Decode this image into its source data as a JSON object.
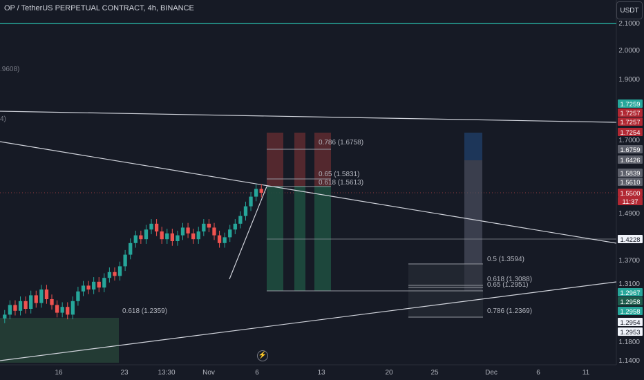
{
  "header": {
    "title": "OP / TetherUS PERPETUAL CONTRACT, 4h, BINANCE",
    "currency_button": "USDT"
  },
  "edge_labels": {
    "top_left": ".9608)",
    "mid_left": "4)"
  },
  "colors": {
    "background": "#161a25",
    "up": "#26a69a",
    "down": "#ef5350",
    "green_zone": "#1e4d3f",
    "red_zone": "#5a2a30",
    "white_line": "#d1d4dc",
    "bottom_zone": "#2a4a3a",
    "blue_zone": "#1e3a5f",
    "grey_zone": "#4a4f5e",
    "teal_line": "#26a69a"
  },
  "icons": {
    "flash": "lightning-icon"
  },
  "flash_glyph": "⚡",
  "chart_data": {
    "type": "candlestick",
    "title": "OP / TetherUS PERPETUAL CONTRACT, 4h, BINANCE",
    "y_axis": {
      "ticks": [
        "2.1000",
        "2.0000",
        "1.9000",
        "1.7000",
        "1.4900",
        "1.3700",
        "1.3100",
        "1.1800",
        "1.1400"
      ]
    },
    "x_axis": {
      "ticks": [
        "16",
        "23",
        "13:30",
        "Nov",
        "6",
        "13",
        "20",
        "25",
        "Dec",
        "6",
        "11"
      ]
    },
    "price_labels": [
      {
        "text": "1.7259",
        "color": "#26a69a"
      },
      {
        "text": "1.7257",
        "color": "#b22833"
      },
      {
        "text": "1.7257",
        "color": "#b22833"
      },
      {
        "text": "1.7254",
        "color": "#b22833"
      },
      {
        "text": "1.6759",
        "color": "#5d606b"
      },
      {
        "text": "1.6426",
        "color": "#5d606b"
      },
      {
        "text": "1.5839",
        "color": "#5d606b"
      },
      {
        "text": "1.5610",
        "color": "#5d606b"
      },
      {
        "text": "1.5500",
        "color": "#b22833"
      },
      {
        "text": "11:37",
        "color": "#b22833"
      },
      {
        "text": "1.4228",
        "color": "#f0f3fa",
        "dark_text": true
      },
      {
        "text": "1.2967",
        "color": "#26a69a"
      },
      {
        "text": "1.2958",
        "color": "#1e5c4c"
      },
      {
        "text": "1.2958",
        "color": "#26a69a"
      },
      {
        "text": "1.2954",
        "color": "#f0f3fa",
        "dark_text": true
      },
      {
        "text": "1.2953",
        "color": "#f0f3fa",
        "dark_text": true
      }
    ],
    "fib_labels": [
      "0.786 (1.6758)",
      "0.65 (1.5831)",
      "0.618 (1.5613)",
      "0.5 (1.3594)",
      "0.618 (1.3088)",
      "0.65 (1.2951)",
      "0.786 (1.2369)",
      "0.618 (1.2359)"
    ],
    "series": [
      {
        "values": [
          1.235,
          1.26,
          1.245,
          1.27,
          1.25,
          1.285,
          1.265,
          1.3,
          1.275,
          1.26,
          1.24,
          1.255,
          1.235,
          1.27,
          1.295,
          1.31,
          1.3,
          1.32,
          1.305,
          1.33,
          1.345,
          1.335,
          1.36,
          1.39,
          1.42,
          1.44,
          1.43,
          1.455,
          1.47,
          1.45,
          1.43,
          1.445,
          1.425,
          1.44,
          1.46,
          1.445,
          1.43,
          1.45,
          1.47,
          1.46,
          1.44,
          1.42,
          1.435,
          1.455,
          1.47,
          1.49,
          1.515,
          1.54,
          1.56,
          1.55
        ]
      }
    ]
  }
}
